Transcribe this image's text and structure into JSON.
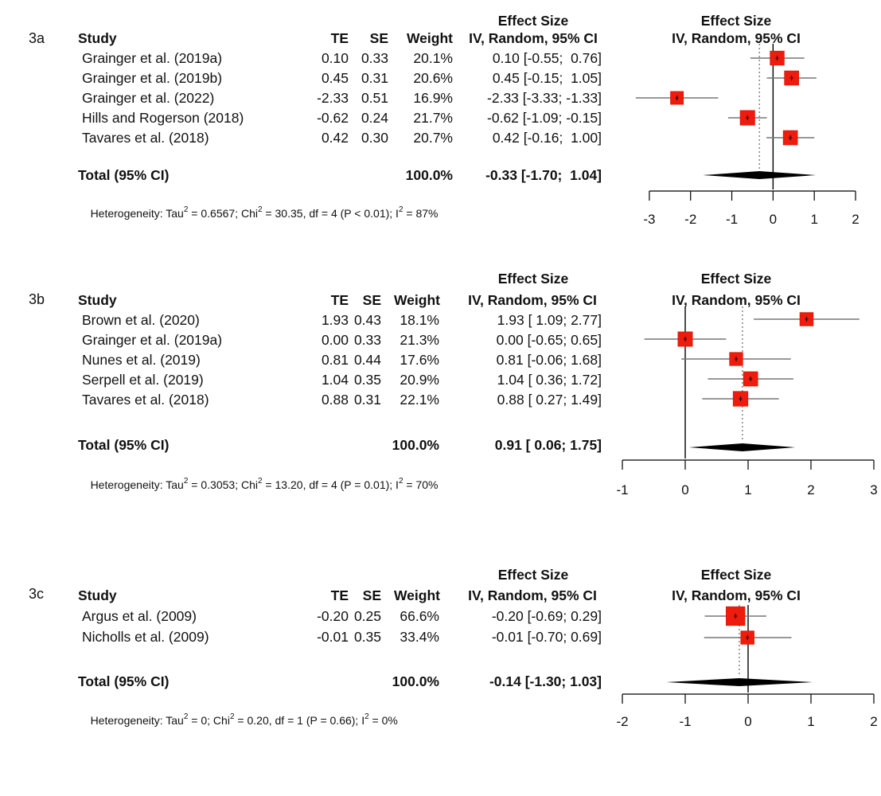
{
  "chart_data": [
    {
      "type": "forest",
      "label": "3a",
      "columns": {
        "study": "Study",
        "te": "TE",
        "se": "SE",
        "weight": "Weight",
        "effect_line1": "Effect Size",
        "effect_line2": "IV, Random, 95% CI"
      },
      "plot_header": {
        "line1": "Effect Size",
        "line2": "IV, Random, 95% CI"
      },
      "studies": [
        {
          "name": "Grainger et al. (2019a)",
          "te": "0.10",
          "se": "0.33",
          "weight": "20.1%",
          "ci": "0.10 [-0.55;  0.76]",
          "est": 0.1,
          "lo": -0.55,
          "hi": 0.76,
          "w": 20.1
        },
        {
          "name": "Grainger et al. (2019b)",
          "te": "0.45",
          "se": "0.31",
          "weight": "20.6%",
          "ci": "0.45 [-0.15;  1.05]",
          "est": 0.45,
          "lo": -0.15,
          "hi": 1.05,
          "w": 20.6
        },
        {
          "name": "Grainger et al. (2022)",
          "te": "-2.33",
          "se": "0.51",
          "weight": "16.9%",
          "ci": "-2.33 [-3.33; -1.33]",
          "est": -2.33,
          "lo": -3.33,
          "hi": -1.33,
          "w": 16.9
        },
        {
          "name": "Hills and Rogerson (2018)",
          "te": "-0.62",
          "se": "0.24",
          "weight": "21.7%",
          "ci": "-0.62 [-1.09; -0.15]",
          "est": -0.62,
          "lo": -1.09,
          "hi": -0.15,
          "w": 21.7
        },
        {
          "name": "Tavares et al. (2018)",
          "te": "0.42",
          "se": "0.30",
          "weight": "20.7%",
          "ci": "0.42 [-0.16;  1.00]",
          "est": 0.42,
          "lo": -0.16,
          "hi": 1.0,
          "w": 20.7
        }
      ],
      "total": {
        "label": "Total (95% CI)",
        "weight": "100.0%",
        "ci": "-0.33 [-1.70;  1.04]",
        "est": -0.33,
        "lo": -1.7,
        "hi": 1.04
      },
      "heterogeneity": {
        "prefix": "Heterogeneity: Tau",
        "tau2": "0.6567",
        "chi_label": "; Chi",
        "chi2": "30.35",
        "rest": ", df = 4 (P < 0.01); I",
        "i2": "87%"
      },
      "xlim": [
        -3.5,
        2.0
      ],
      "ticks": [
        -3,
        -2,
        -1,
        0,
        1,
        2
      ],
      "tick_labels": [
        "-3",
        "-2",
        "-1",
        "0",
        "1",
        "2"
      ],
      "reference_line": 0,
      "summary_line": -0.33
    },
    {
      "type": "forest",
      "label": "3b",
      "columns": {
        "study": "Study",
        "te": "TE",
        "se": "SE",
        "weight": "Weight",
        "effect_line1": "Effect Size",
        "effect_line2": "IV, Random, 95% CI"
      },
      "plot_header": {
        "line1": "Effect Size",
        "line2": "IV, Random, 95% CI"
      },
      "studies": [
        {
          "name": "Brown et al. (2020)",
          "te": "1.93",
          "se": "0.43",
          "weight": "18.1%",
          "ci": "1.93 [ 1.09; 2.77]",
          "est": 1.93,
          "lo": 1.09,
          "hi": 2.77,
          "w": 18.1
        },
        {
          "name": "Grainger et al. (2019a)",
          "te": "0.00",
          "se": "0.33",
          "weight": "21.3%",
          "ci": "0.00 [-0.65; 0.65]",
          "est": 0.0,
          "lo": -0.65,
          "hi": 0.65,
          "w": 21.3
        },
        {
          "name": "Nunes et al. (2019)",
          "te": "0.81",
          "se": "0.44",
          "weight": "17.6%",
          "ci": "0.81 [-0.06; 1.68]",
          "est": 0.81,
          "lo": -0.06,
          "hi": 1.68,
          "w": 17.6
        },
        {
          "name": "Serpell et al. (2019)",
          "te": "1.04",
          "se": "0.35",
          "weight": "20.9%",
          "ci": "1.04 [ 0.36; 1.72]",
          "est": 1.04,
          "lo": 0.36,
          "hi": 1.72,
          "w": 20.9
        },
        {
          "name": "Tavares et al. (2018)",
          "te": "0.88",
          "se": "0.31",
          "weight": "22.1%",
          "ci": "0.88 [ 0.27; 1.49]",
          "est": 0.88,
          "lo": 0.27,
          "hi": 1.49,
          "w": 22.1
        }
      ],
      "total": {
        "label": "Total (95% CI)",
        "weight": "100.0%",
        "ci": "0.91 [ 0.06; 1.75]",
        "est": 0.91,
        "lo": 0.06,
        "hi": 1.75
      },
      "heterogeneity": {
        "prefix": "Heterogeneity: Tau",
        "tau2": "0.3053",
        "chi_label": "; Chi",
        "chi2": "13.20",
        "rest": ", df = 4 (P = 0.01); I",
        "i2": "70%"
      },
      "xlim": [
        -1,
        3
      ],
      "ticks": [
        -1,
        0,
        1,
        2,
        3
      ],
      "tick_labels": [
        "-1",
        "0",
        "1",
        "2",
        "3"
      ],
      "reference_line": 0,
      "summary_line": 0.91
    },
    {
      "type": "forest",
      "label": "3c",
      "columns": {
        "study": "Study",
        "te": "TE",
        "se": "SE",
        "weight": "Weight",
        "effect_line1": "Effect Size",
        "effect_line2": "IV, Random, 95% CI"
      },
      "plot_header": {
        "line1": "Effect Size",
        "line2": "IV, Random, 95% CI"
      },
      "studies": [
        {
          "name": "Argus et al. (2009)",
          "te": "-0.20",
          "se": "0.25",
          "weight": "66.6%",
          "ci": "-0.20 [-0.69; 0.29]",
          "est": -0.2,
          "lo": -0.69,
          "hi": 0.29,
          "w": 66.6
        },
        {
          "name": "Nicholls et al. (2009)",
          "te": "-0.01",
          "se": "0.35",
          "weight": "33.4%",
          "ci": "-0.01 [-0.70; 0.69]",
          "est": -0.01,
          "lo": -0.7,
          "hi": 0.69,
          "w": 33.4
        }
      ],
      "total": {
        "label": "Total (95% CI)",
        "weight": "100.0%",
        "ci": "-0.14 [-1.30; 1.03]",
        "est": -0.14,
        "lo": -1.3,
        "hi": 1.03
      },
      "heterogeneity": {
        "prefix": "Heterogeneity: Tau",
        "tau2": "0",
        "chi_label": "; Chi",
        "chi2": "0.20",
        "rest": ", df = 1 (P = 0.66); I",
        "i2": "0%"
      },
      "xlim": [
        -2,
        2
      ],
      "ticks": [
        -2,
        -1,
        0,
        1,
        2
      ],
      "tick_labels": [
        "-2",
        "-1",
        "0",
        "1",
        "2"
      ],
      "reference_line": 0,
      "summary_line": -0.14
    }
  ]
}
